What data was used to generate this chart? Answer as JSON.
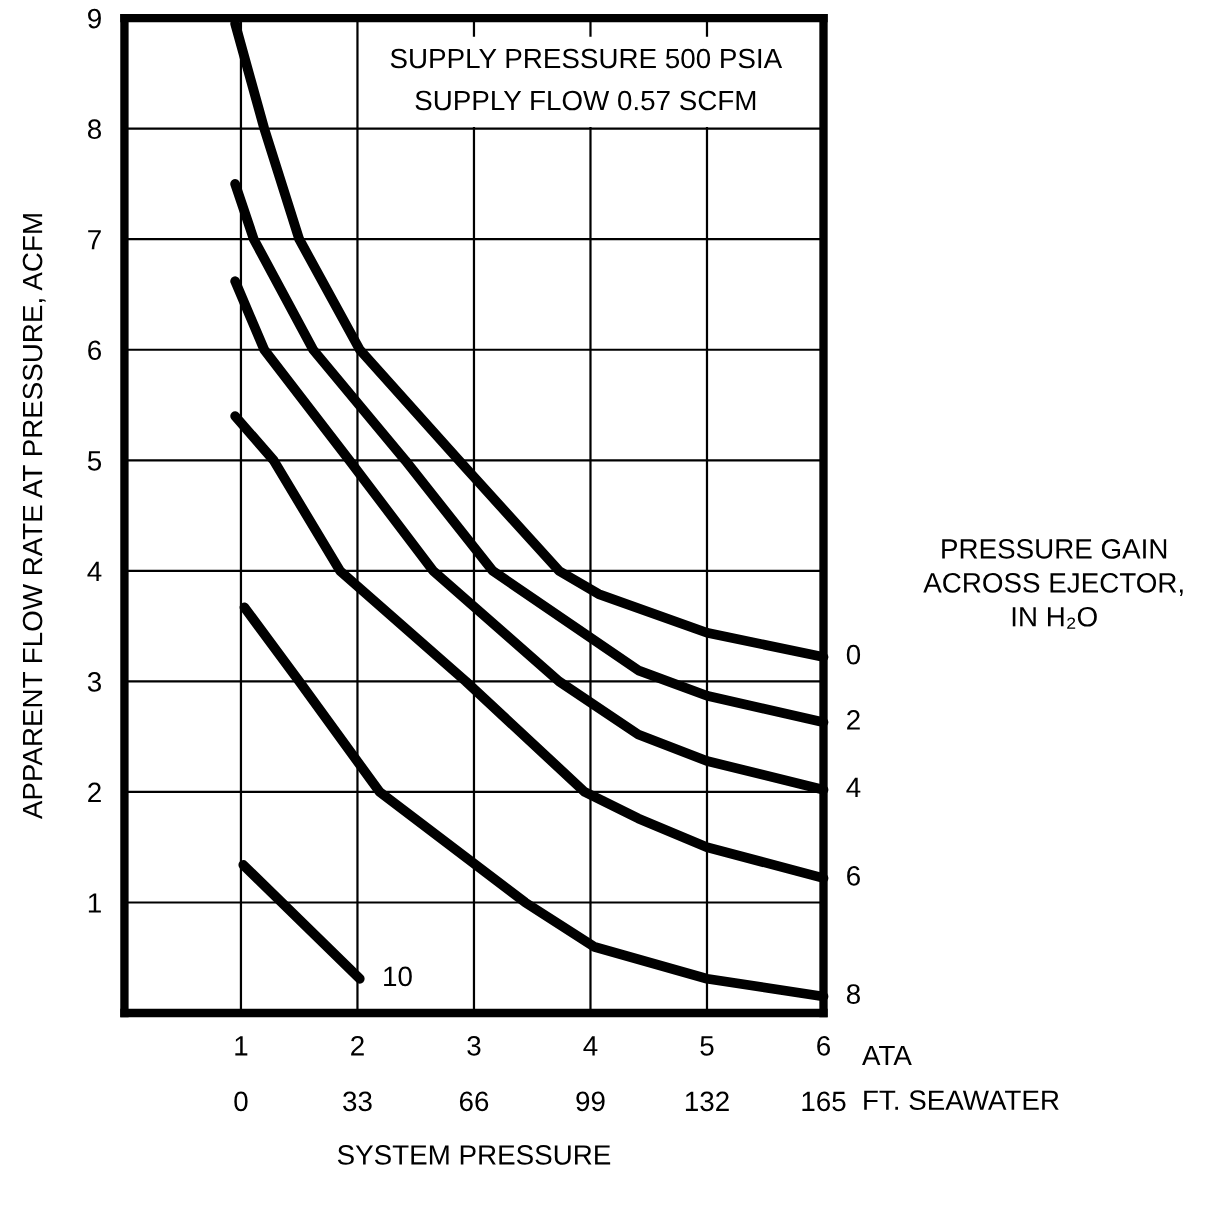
{
  "chart_data": {
    "type": "line",
    "xlabel": "SYSTEM PRESSURE",
    "ylabel": "APPARENT FLOW RATE AT PRESSURE, ACFM",
    "x2label": "FT. SEAWATER",
    "legend_title": "PRESSURE GAIN\nACROSS EJECTOR,\nIN H₂O",
    "annotations": [
      "SUPPLY PRESSURE 500 PSIA",
      "SUPPLY FLOW 0.57 SCFM",
      "ATA"
    ],
    "xlim": [
      0,
      6
    ],
    "xticks": [
      {
        "value": 0,
        "label": null
      },
      1,
      2,
      3,
      4,
      5,
      6
    ],
    "x2lim": [
      -33,
      165
    ],
    "x2ticks": [
      0,
      33,
      66,
      99,
      132,
      165
    ],
    "ylim": [
      0,
      9
    ],
    "yticks": [
      {
        "value": 0,
        "label": null
      },
      1,
      2,
      3,
      4,
      5,
      6,
      7,
      8,
      9
    ],
    "grid": true,
    "legend": false,
    "marker": "none",
    "line_style": "solid",
    "series": [
      {
        "name": "0",
        "color": "#000000",
        "x": [
          0.95,
          1.2,
          1.5,
          2.02,
          2.87,
          3.73,
          4.07,
          5,
          6
        ],
        "values": [
          8.95,
          8,
          7,
          6,
          5,
          4,
          3.79,
          3.44,
          3.22
        ]
      },
      {
        "name": "2",
        "color": "#000000",
        "x": [
          0.95,
          1.11,
          1.62,
          2.41,
          3.16,
          4.41,
          5,
          6
        ],
        "values": [
          7.5,
          7,
          6,
          5,
          4,
          3.1,
          2.87,
          2.63
        ]
      },
      {
        "name": "4",
        "color": "#000000",
        "x": [
          0.95,
          1.2,
          1.93,
          2.65,
          3.73,
          4.41,
          5,
          6
        ],
        "values": [
          6.62,
          6,
          5,
          4,
          3,
          2.52,
          2.28,
          2.02
        ]
      },
      {
        "name": "6",
        "color": "#000000",
        "x": [
          0.95,
          1.28,
          1.85,
          2.93,
          3.95,
          4.41,
          5,
          6
        ],
        "values": [
          5.4,
          5,
          4,
          3,
          2,
          1.76,
          1.5,
          1.22
        ]
      },
      {
        "name": "8",
        "color": "#000000",
        "x": [
          1.03,
          1.5,
          2.19,
          3.44,
          4.03,
          5,
          6
        ],
        "values": [
          3.67,
          3,
          2,
          1,
          0.6,
          0.31,
          0.15
        ]
      },
      {
        "name": "10",
        "color": "#000000",
        "x": [
          1.02,
          2.02
        ],
        "values": [
          1.34,
          0.31
        ]
      }
    ]
  }
}
